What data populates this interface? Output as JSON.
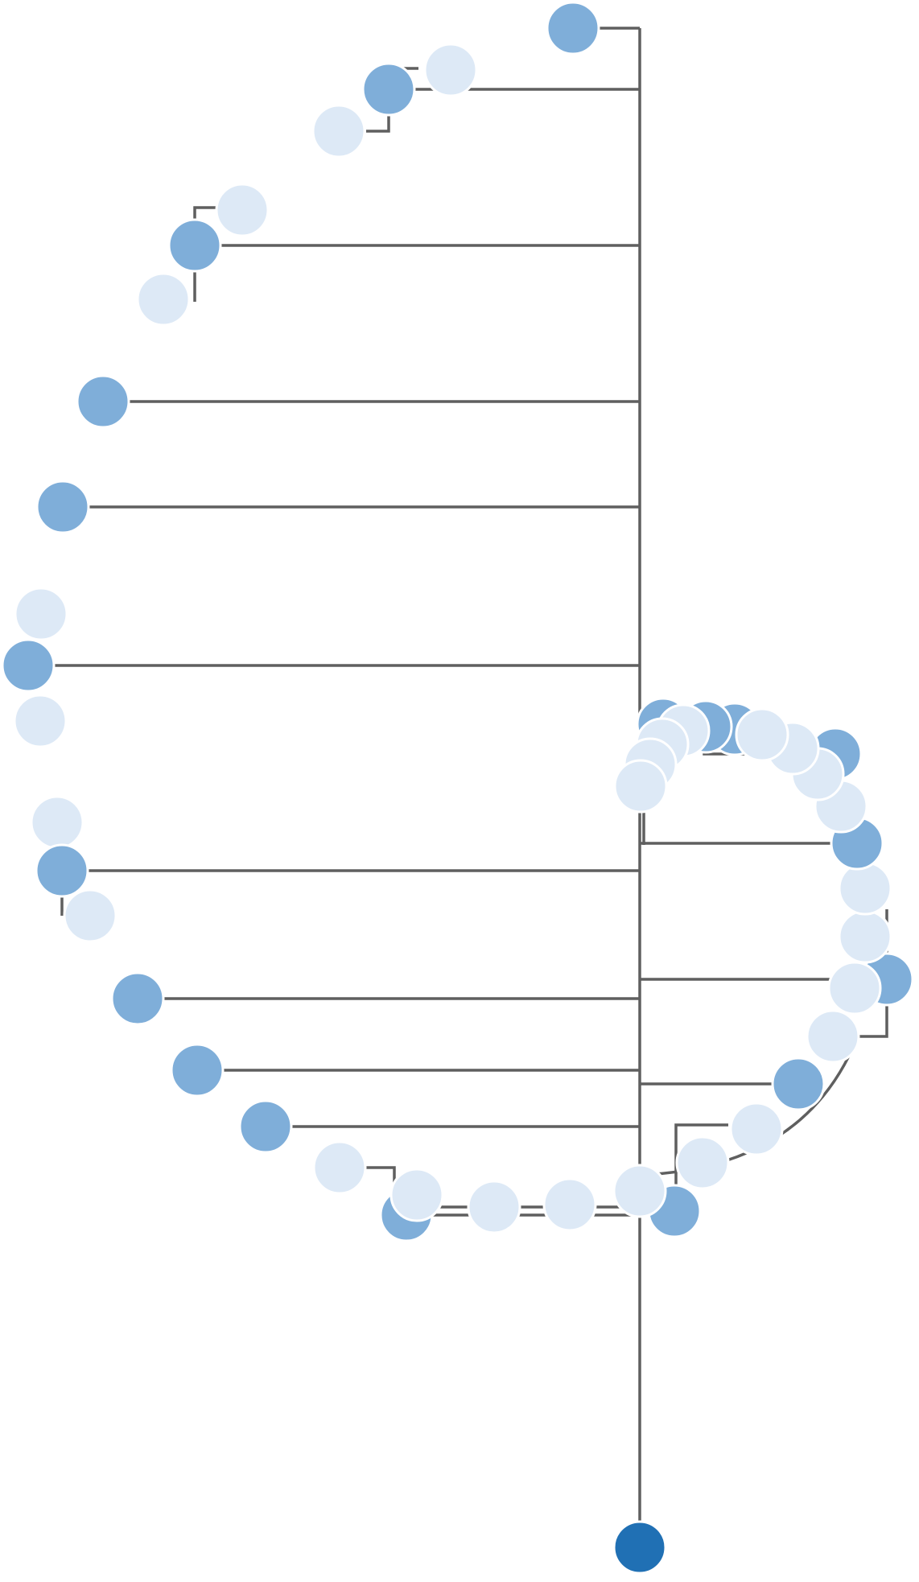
{
  "colors": {
    "link": "#5f5f5f",
    "root": "#2070b4",
    "node_dark": "#7faed9",
    "node_light": "#dde9f6",
    "node_stroke": "#ffffff"
  }
}
